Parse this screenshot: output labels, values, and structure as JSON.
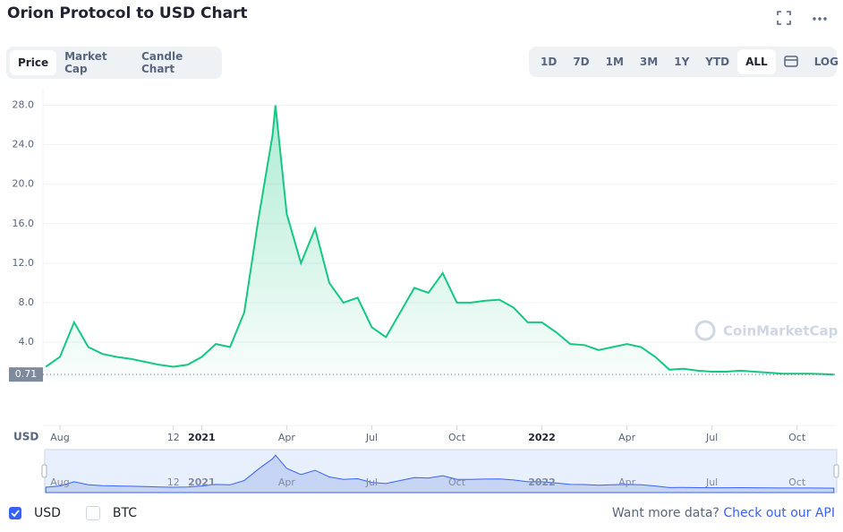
{
  "header": {
    "title": "Orion Protocol to USD Chart"
  },
  "tabs": [
    "Price",
    "Market Cap",
    "Candle Chart"
  ],
  "ranges": [
    "1D",
    "7D",
    "1M",
    "3M",
    "1Y",
    "YTD",
    "ALL"
  ],
  "log": "LOG",
  "watermark": "CoinMarketCap",
  "chart_data": {
    "type": "line",
    "color": "#16c784",
    "y_label": "USD",
    "x": [
      -0.5,
      0,
      0.5,
      1,
      1.5,
      2,
      2.5,
      3,
      3.5,
      4,
      4.5,
      5,
      5.5,
      6,
      6.5,
      7,
      7.5,
      7.6,
      8,
      8.5,
      9,
      9.5,
      10,
      10.5,
      11,
      11.5,
      12,
      12.5,
      13,
      13.5,
      14,
      14.5,
      15,
      15.5,
      16,
      16.5,
      17,
      17.5,
      18,
      18.5,
      19,
      19.5,
      20,
      20.5,
      21,
      21.5,
      22,
      22.5,
      23,
      23.5,
      24,
      24.5,
      25,
      25.5,
      26,
      26.5,
      27,
      27.3
    ],
    "values": [
      1.5,
      2.5,
      6.0,
      3.5,
      2.8,
      2.5,
      2.3,
      2.0,
      1.7,
      1.5,
      1.7,
      2.5,
      3.8,
      3.5,
      7.0,
      16.5,
      25.0,
      28.0,
      17.0,
      12.0,
      15.5,
      10.0,
      8.0,
      8.5,
      5.5,
      4.5,
      7.0,
      9.5,
      9.0,
      11.0,
      8.0,
      8.0,
      8.2,
      8.3,
      7.5,
      6.0,
      6.0,
      5.0,
      3.8,
      3.7,
      3.2,
      3.5,
      3.8,
      3.5,
      2.5,
      1.2,
      1.3,
      1.1,
      1.0,
      1.0,
      1.1,
      1.0,
      0.9,
      0.8,
      0.8,
      0.8,
      0.75,
      0.71
    ],
    "xlim": [
      -0.6,
      27.4
    ],
    "ylim": [
      0,
      29.6
    ],
    "xticks": [
      {
        "value": 0,
        "label": "Aug"
      },
      {
        "value": 4,
        "label": "12"
      },
      {
        "value": 5,
        "label": "2021"
      },
      {
        "value": 8,
        "label": "Apr"
      },
      {
        "value": 11,
        "label": "Jul"
      },
      {
        "value": 14,
        "label": "Oct"
      },
      {
        "value": 17,
        "label": "2022"
      },
      {
        "value": 20,
        "label": "Apr"
      },
      {
        "value": 23,
        "label": "Jul"
      },
      {
        "value": 26,
        "label": "Oct"
      }
    ],
    "yticks": [
      {
        "value": 4,
        "label": "4.0"
      },
      {
        "value": 8,
        "label": "8.0"
      },
      {
        "value": 12,
        "label": "12.0"
      },
      {
        "value": 16,
        "label": "16.0"
      },
      {
        "value": 20,
        "label": "20.0"
      },
      {
        "value": 24,
        "label": "24.0"
      },
      {
        "value": 28,
        "label": "28.0"
      }
    ],
    "current_price": 0.71,
    "grid": true
  },
  "currencies": [
    "USD",
    "BTC"
  ],
  "footer": {
    "text": "Want more data?",
    "link": "Check out our API"
  }
}
